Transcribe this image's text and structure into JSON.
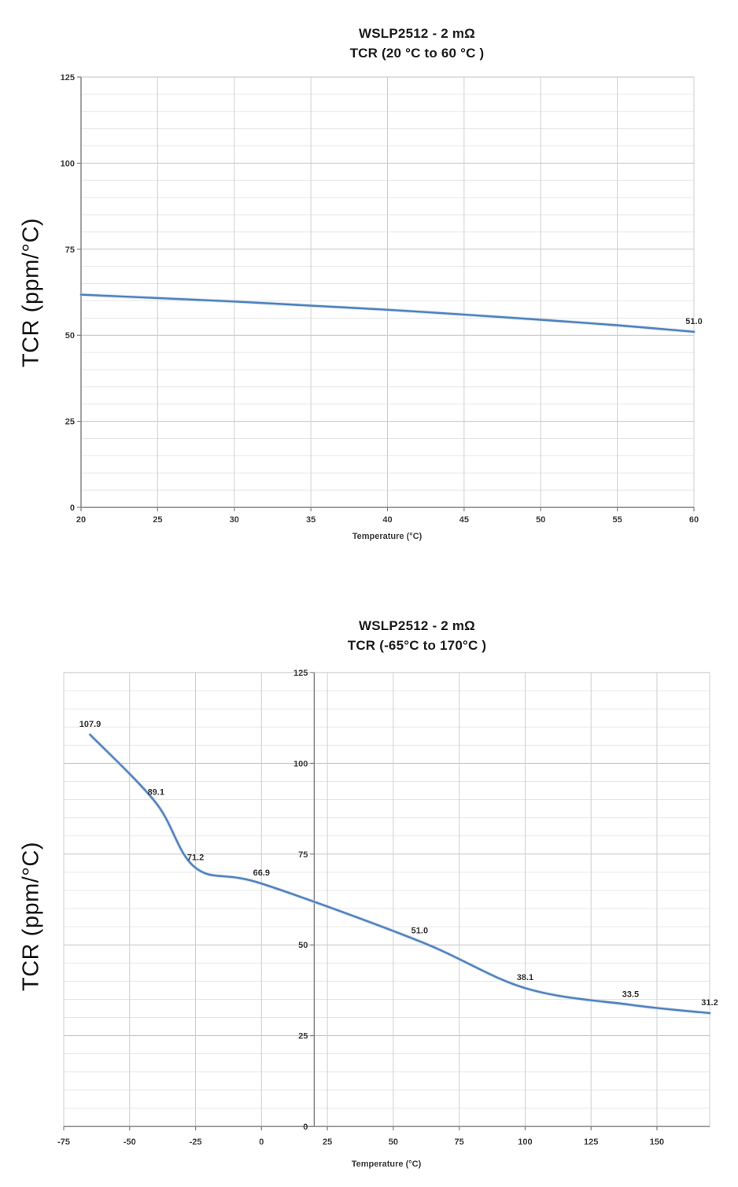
{
  "page": {
    "background": "#ffffff"
  },
  "accent_color": "#4f81bd",
  "chart_data": [
    {
      "type": "line",
      "title": "WSLP2512 - 2 mΩ",
      "subtitle": "TCR (20 °C to 60 °C )",
      "xlabel": "Temperature (°C)",
      "ylabel": "TCR (ppm/°C)",
      "xlim": [
        20,
        60
      ],
      "ylim": [
        0,
        125
      ],
      "x_ticks": [
        20,
        25,
        30,
        35,
        40,
        45,
        50,
        55,
        60
      ],
      "y_ticks": [
        0,
        25,
        50,
        75,
        100,
        125
      ],
      "y_minor_step": 5,
      "y_axis_at": 20,
      "grid": true,
      "legend": false,
      "line_color": "#4f81bd",
      "series": [
        {
          "name": "TCR",
          "points": [
            [
              20,
              61.8
            ],
            [
              25,
              60.8
            ],
            [
              30,
              59.8
            ],
            [
              35,
              58.6
            ],
            [
              40,
              57.4
            ],
            [
              45,
              56.0
            ],
            [
              50,
              54.5
            ],
            [
              55,
              52.9
            ],
            [
              60,
              51.0
            ]
          ],
          "point_labels": [
            {
              "x": 60,
              "y": 51.0,
              "text": "51.0"
            }
          ]
        }
      ]
    },
    {
      "type": "line",
      "title": "WSLP2512 - 2 mΩ",
      "subtitle": "TCR (-65°C to 170°C )",
      "xlabel": "Temperature (°C)",
      "ylabel": "TCR (ppm/°C)",
      "xlim": [
        -75,
        170
      ],
      "ylim": [
        0,
        125
      ],
      "x_ticks": [
        -75,
        -50,
        -25,
        0,
        25,
        50,
        75,
        100,
        125,
        150
      ],
      "y_ticks": [
        0,
        25,
        50,
        75,
        100,
        125
      ],
      "y_minor_step": 5,
      "y_axis_at": 20,
      "grid": true,
      "legend": false,
      "line_color": "#4f81bd",
      "series": [
        {
          "name": "TCR",
          "points": [
            [
              -65,
              107.9
            ],
            [
              -40,
              89.1
            ],
            [
              -25,
              71.2
            ],
            [
              0,
              66.9
            ],
            [
              60,
              51.0
            ],
            [
              100,
              38.1
            ],
            [
              140,
              33.5
            ],
            [
              170,
              31.2
            ]
          ],
          "point_labels": [
            {
              "x": -65,
              "y": 107.9,
              "text": "107.9"
            },
            {
              "x": -40,
              "y": 89.1,
              "text": "89.1"
            },
            {
              "x": -25,
              "y": 71.2,
              "text": "71.2"
            },
            {
              "x": 0,
              "y": 66.9,
              "text": "66.9"
            },
            {
              "x": 60,
              "y": 51.0,
              "text": "51.0"
            },
            {
              "x": 100,
              "y": 38.1,
              "text": "38.1"
            },
            {
              "x": 140,
              "y": 33.5,
              "text": "33.5"
            },
            {
              "x": 170,
              "y": 31.2,
              "text": "31.2"
            }
          ]
        }
      ]
    }
  ],
  "style": {
    "minor_grid": "#e7e7e7",
    "major_grid": "#c3c3c3",
    "vertical_grid": "#cfcfcf",
    "axis": "#7f7f7f",
    "halo": "#b9cfe6",
    "tick_label": "#3b3b3b",
    "data_label": "#333333"
  }
}
